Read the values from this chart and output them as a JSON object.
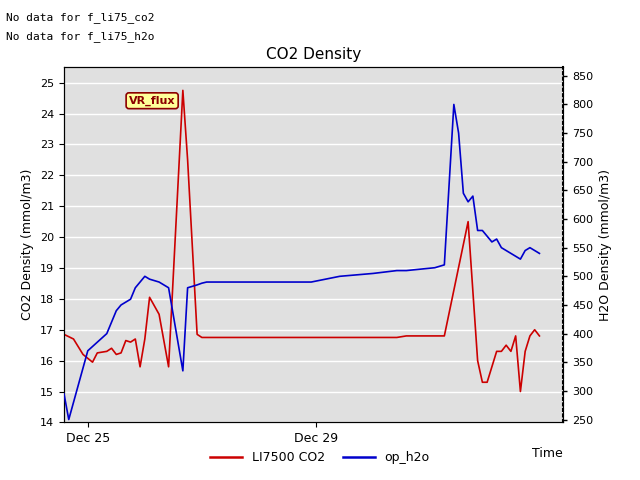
{
  "title": "CO2 Density",
  "xlabel": "Time",
  "ylabel_left": "CO2 Density (mmol/m3)",
  "ylabel_right": "H2O Density (mmol/m3)",
  "note1": "No data for f_li75_co2",
  "note2": "No data for f_li75_h2o",
  "vr_flux_label": "VR_flux",
  "ylim_left": [
    14.0,
    25.5
  ],
  "ylim_right": [
    245,
    865
  ],
  "yticks_left": [
    14.0,
    15.0,
    16.0,
    17.0,
    18.0,
    19.0,
    20.0,
    21.0,
    22.0,
    23.0,
    24.0,
    25.0
  ],
  "yticks_right": [
    250,
    300,
    350,
    400,
    450,
    500,
    550,
    600,
    650,
    700,
    750,
    800,
    850
  ],
  "xtick_labels": [
    "Dec 25",
    "Dec 29"
  ],
  "bg_color": "#e0e0e0",
  "grid_color": "#ffffff",
  "co2_color": "#cc0000",
  "h2o_color": "#0000cc",
  "legend_co2": "LI7500 CO2",
  "legend_h2o": "op_h2o",
  "co2_x": [
    0,
    2,
    4,
    6,
    7,
    9,
    10,
    11,
    12,
    13,
    14,
    15,
    16,
    17,
    18,
    20,
    22,
    25,
    26,
    28,
    29,
    30,
    45,
    50,
    52,
    55,
    58,
    70,
    72,
    80,
    85,
    87,
    88,
    89,
    90,
    91,
    92,
    93,
    94,
    95,
    96,
    97,
    98,
    99,
    100
  ],
  "co2_y": [
    16.85,
    16.7,
    16.2,
    15.95,
    16.25,
    16.3,
    16.4,
    16.2,
    16.25,
    16.65,
    16.6,
    16.7,
    15.8,
    16.7,
    18.05,
    17.5,
    15.8,
    24.75,
    22.5,
    16.85,
    16.75,
    16.75,
    16.75,
    16.75,
    16.75,
    16.75,
    16.75,
    16.75,
    16.8,
    16.8,
    20.5,
    16.0,
    15.3,
    15.3,
    15.8,
    16.3,
    16.3,
    16.5,
    16.3,
    16.8,
    15.0,
    16.3,
    16.8,
    17.0,
    16.8
  ],
  "h2o_x": [
    0,
    1,
    3,
    5,
    7,
    9,
    10,
    11,
    12,
    13,
    14,
    15,
    16,
    17,
    18,
    20,
    22,
    25,
    26,
    28,
    29,
    30,
    45,
    50,
    52,
    55,
    58,
    65,
    70,
    72,
    78,
    80,
    82,
    83,
    84,
    85,
    86,
    87,
    88,
    89,
    90,
    91,
    92,
    93,
    94,
    95,
    96,
    97,
    98,
    99,
    100
  ],
  "h2o_y": [
    295,
    250,
    310,
    370,
    385,
    400,
    420,
    440,
    450,
    455,
    460,
    480,
    490,
    500,
    495,
    490,
    480,
    335,
    480,
    485,
    488,
    490,
    490,
    490,
    490,
    495,
    500,
    505,
    510,
    510,
    515,
    520,
    800,
    750,
    645,
    630,
    640,
    580,
    580,
    570,
    560,
    565,
    550,
    545,
    540,
    535,
    530,
    545,
    550,
    545,
    540
  ]
}
